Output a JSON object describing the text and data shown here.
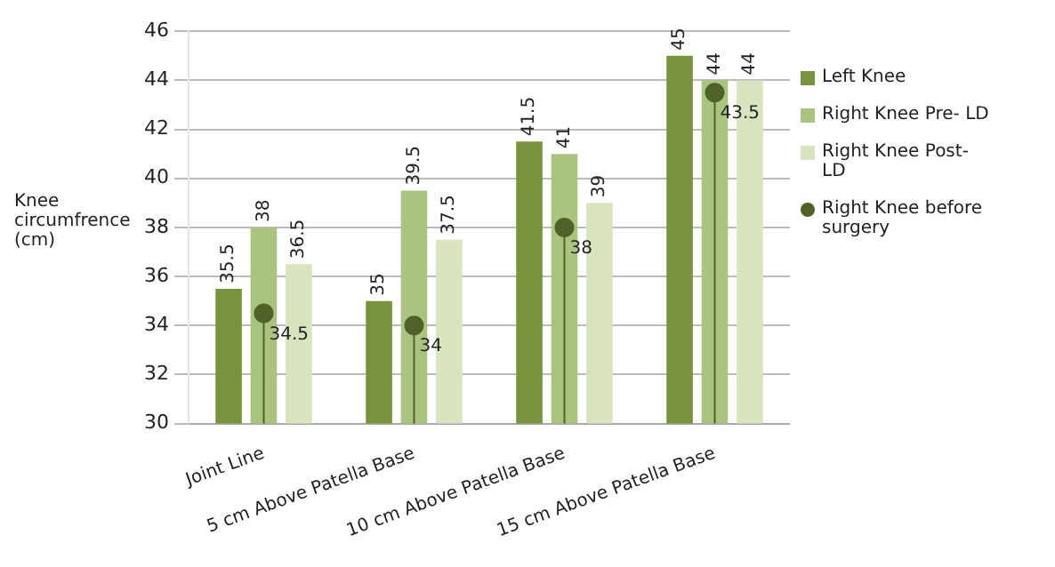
{
  "chart_data": {
    "type": "bar",
    "ylabel": "Knee circumfrence (cm)",
    "categories": [
      "Joint Line",
      "5 cm Above Patella Base",
      "10 cm Above Patella Base",
      "15 cm Above Patella Base"
    ],
    "series": [
      {
        "name": "Left Knee",
        "color": "#77933c",
        "values": [
          35.5,
          35,
          41.5,
          45
        ]
      },
      {
        "name": "Right Knee Pre- LD",
        "color": "#a9c47f",
        "values": [
          38,
          39.5,
          41,
          44
        ]
      },
      {
        "name": "Right Knee Post- LD",
        "color": "#d7e4bd",
        "values": [
          36.5,
          37.5,
          39,
          44
        ]
      },
      {
        "name": "Right Knee before surgery",
        "color": "#4f6228",
        "type": "lollipop",
        "marker": "circle",
        "values": [
          34.5,
          34,
          38,
          43.5
        ]
      }
    ],
    "ylim": [
      30,
      46
    ],
    "yticks": [
      30,
      32,
      34,
      36,
      38,
      40,
      42,
      44,
      46
    ],
    "grid": "y",
    "legend": "right",
    "data_labels": true
  }
}
